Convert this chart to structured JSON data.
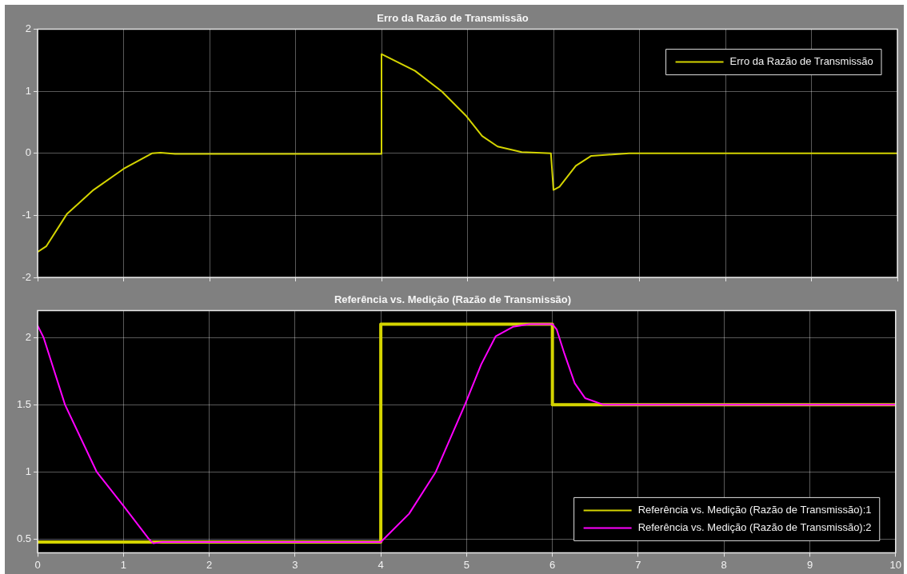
{
  "chart_data": [
    {
      "type": "line",
      "title": "Erro da Razão de Transmissão",
      "xlim": [
        0,
        10
      ],
      "xticks": [
        0,
        1,
        2,
        3,
        4,
        5,
        6,
        7,
        8,
        9,
        10
      ],
      "ylim": [
        -2,
        2
      ],
      "yticks": [
        -2,
        -1,
        0,
        1,
        2
      ],
      "grid": true,
      "legend": "top right",
      "tick_labels": "y",
      "line_style": "solid",
      "series": [
        {
          "name": "Erro da Razão de Transmissão",
          "color": "#d4d400",
          "x": [
            0,
            0.1,
            0.34,
            0.65,
            1.0,
            1.33,
            1.43,
            1.6,
            4.0,
            4.0,
            4.39,
            4.7,
            4.98,
            5.17,
            5.35,
            5.63,
            5.97,
            6.0,
            6.07,
            6.26,
            6.44,
            6.88,
            10
          ],
          "values": [
            -1.59,
            -1.5,
            -0.98,
            -0.59,
            -0.25,
            0,
            0.01,
            -0.01,
            -0.01,
            1.6,
            1.33,
            1.0,
            0.61,
            0.28,
            0.11,
            0.02,
            0,
            -0.59,
            -0.54,
            -0.2,
            -0.04,
            0,
            0
          ]
        }
      ]
    },
    {
      "type": "line",
      "title": "Referência vs. Medição (Razão de Transmissão)",
      "xlim": [
        0,
        10
      ],
      "xticks": [
        0,
        1,
        2,
        3,
        4,
        5,
        6,
        7,
        8,
        9,
        10
      ],
      "ylim": [
        0.4,
        2.2
      ],
      "yticks": [
        0.5,
        1,
        1.5,
        2
      ],
      "grid": true,
      "legend": "bottom right",
      "line_style": "solid",
      "series": [
        {
          "name": "Referência vs. Medição (Razão de Transmissão):1",
          "color": "#d4d400",
          "x": [
            0,
            4.0,
            4.0,
            6.0,
            6.0,
            10
          ],
          "values": [
            0.48,
            0.48,
            2.1,
            2.1,
            1.5,
            1.5
          ]
        },
        {
          "name": "Referência vs. Medição (Razão de Transmissão):2",
          "color": "#ff00ff",
          "x": [
            0,
            0.07,
            0.32,
            0.69,
            1.0,
            1.3,
            1.35,
            1.45,
            4.0,
            4.33,
            4.64,
            4.98,
            5.17,
            5.34,
            5.54,
            5.73,
            6.0,
            6.05,
            6.14,
            6.26,
            6.38,
            6.6,
            10
          ],
          "values": [
            2.09,
            2.0,
            1.5,
            1.0,
            0.75,
            0.5,
            0.47,
            0.48,
            0.48,
            0.69,
            1.0,
            1.5,
            1.8,
            2.01,
            2.08,
            2.1,
            2.1,
            2.06,
            1.88,
            1.66,
            1.55,
            1.5,
            1.5
          ]
        }
      ]
    }
  ]
}
